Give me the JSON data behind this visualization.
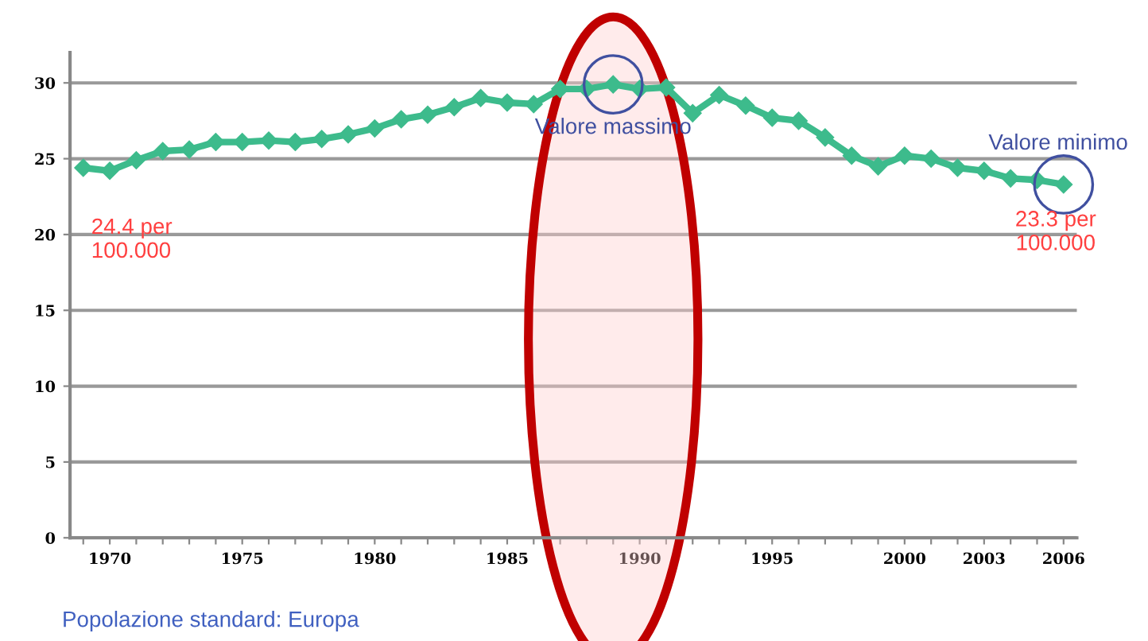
{
  "chart_data": {
    "type": "line",
    "x": [
      1969,
      1970,
      1971,
      1972,
      1973,
      1974,
      1975,
      1976,
      1977,
      1978,
      1979,
      1980,
      1981,
      1982,
      1983,
      1984,
      1985,
      1986,
      1987,
      1988,
      1989,
      1990,
      1991,
      1992,
      1993,
      1994,
      1995,
      1996,
      1997,
      1998,
      1999,
      2000,
      2001,
      2002,
      2003,
      2004,
      2005,
      2006
    ],
    "series": [
      {
        "color": "#3dbb8c",
        "values": [
          24.4,
          24.2,
          24.9,
          25.5,
          25.6,
          26.1,
          26.1,
          26.2,
          26.1,
          26.3,
          26.6,
          27.0,
          27.6,
          27.9,
          28.4,
          29.0,
          28.7,
          28.6,
          29.6,
          29.6,
          29.9,
          29.6,
          29.7,
          28.0,
          29.2,
          28.5,
          27.7,
          27.5,
          26.4,
          25.2,
          24.5,
          25.2,
          25.0,
          24.4,
          24.2,
          23.7,
          23.6,
          23.3
        ]
      }
    ],
    "xlim": [
      1968.5,
      2006.5
    ],
    "ylim": [
      0,
      32
    ],
    "xticks": [
      {
        "value": 1969,
        "label": null
      },
      1970,
      {
        "value": 1971,
        "label": null
      },
      {
        "value": 1972,
        "label": null
      },
      {
        "value": 1973,
        "label": null
      },
      {
        "value": 1974,
        "label": null
      },
      1975,
      {
        "value": 1976,
        "label": null
      },
      {
        "value": 1977,
        "label": null
      },
      {
        "value": 1978,
        "label": null
      },
      {
        "value": 1979,
        "label": null
      },
      1980,
      {
        "value": 1981,
        "label": null
      },
      {
        "value": 1982,
        "label": null
      },
      {
        "value": 1983,
        "label": null
      },
      {
        "value": 1984,
        "label": null
      },
      1985,
      {
        "value": 1986,
        "label": null
      },
      {
        "value": 1987,
        "label": null
      },
      {
        "value": 1988,
        "label": null
      },
      {
        "value": 1989,
        "label": null
      },
      1990,
      {
        "value": 1991,
        "label": null
      },
      {
        "value": 1992,
        "label": null
      },
      {
        "value": 1993,
        "label": null
      },
      {
        "value": 1994,
        "label": null
      },
      1995,
      {
        "value": 1996,
        "label": null
      },
      {
        "value": 1997,
        "label": null
      },
      {
        "value": 1998,
        "label": null
      },
      {
        "value": 1999,
        "label": null
      },
      2000,
      {
        "value": 2001,
        "label": null
      },
      {
        "value": 2002,
        "label": null
      },
      2003,
      {
        "value": 2004,
        "label": null
      },
      {
        "value": 2005,
        "label": null
      },
      2006
    ],
    "yticks": [
      0,
      5,
      10,
      15,
      20,
      25,
      30
    ],
    "grid": "y",
    "marker": "diamond",
    "line_style": "solid",
    "annotations": [
      {
        "text": "24.4 per\n100.000",
        "x": 1969,
        "y": 24.4
      },
      {
        "text": "Valore massimo",
        "x": 1989,
        "y": 29.9
      },
      {
        "text": "Valore minimo",
        "x": 2006,
        "y": 23.3
      },
      {
        "text": "23.3 per\n100.000",
        "x": 2006,
        "y": 23.3
      },
      "Popolazione standard: Europa"
    ]
  }
}
